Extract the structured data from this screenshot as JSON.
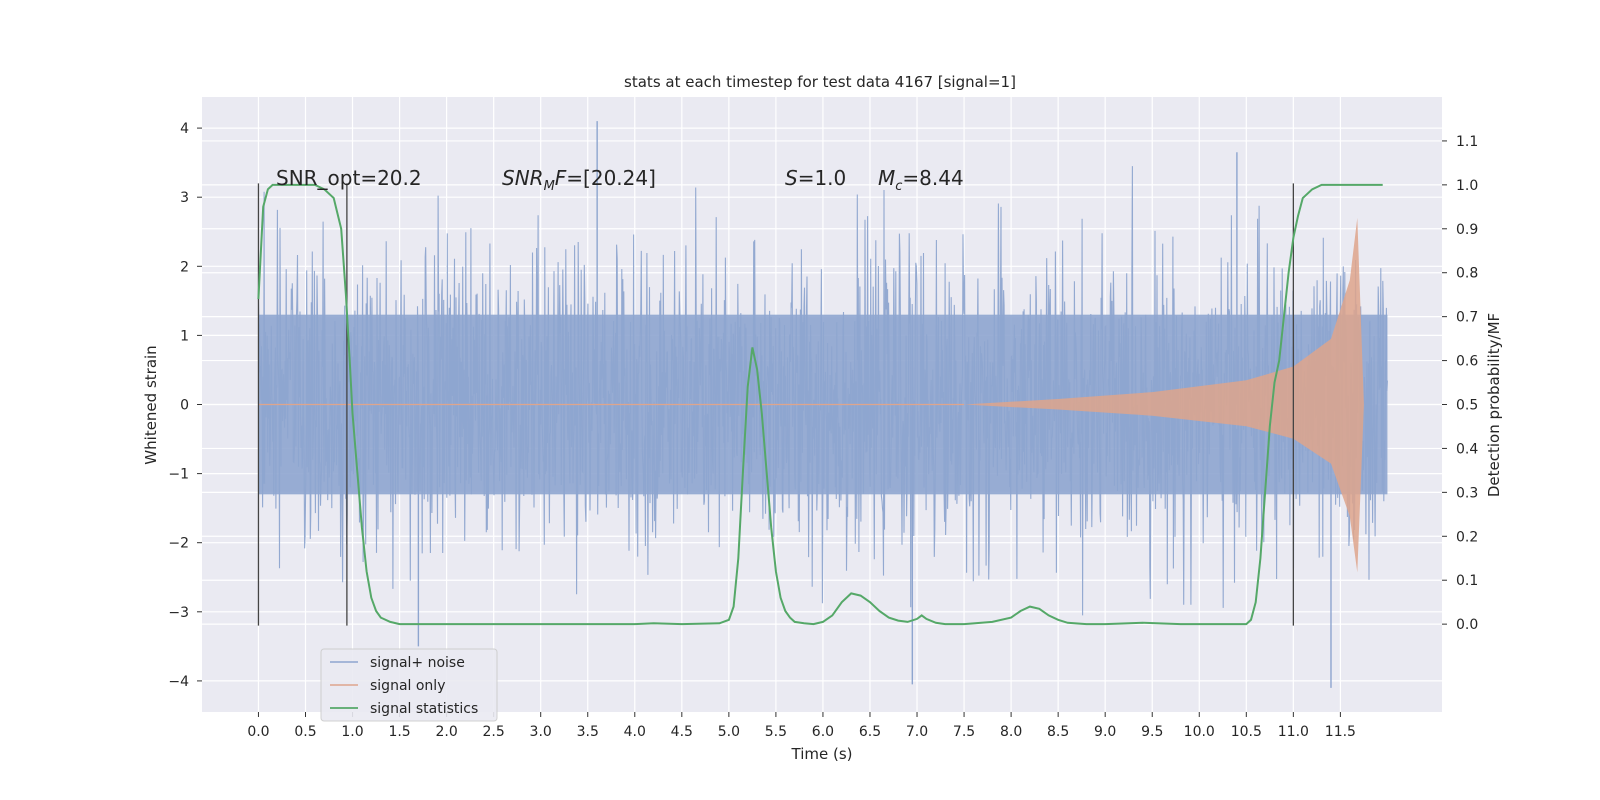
{
  "chart_data": {
    "type": "line",
    "title": "stats at each timestep for test data 4167 [signal=1]",
    "xlabel": "Time (s)",
    "ylabel": "Whitened strain",
    "y2label": "Detection probability/MF",
    "xlim": [
      -0.6,
      12.58
    ],
    "ylim": [
      -4.45,
      4.45
    ],
    "y2lim": [
      -0.2,
      1.2
    ],
    "x_ticks": [
      0.0,
      0.5,
      1.0,
      1.5,
      2.0,
      2.5,
      3.0,
      3.5,
      4.0,
      4.5,
      5.0,
      5.5,
      6.0,
      6.5,
      7.0,
      7.5,
      8.0,
      8.5,
      9.0,
      9.5,
      10.0,
      10.5,
      11.0,
      11.5
    ],
    "y_ticks": [
      -4,
      -3,
      -2,
      -1,
      0,
      1,
      2,
      3,
      4
    ],
    "y2_ticks": [
      0.0,
      0.1,
      0.2,
      0.3,
      0.4,
      0.5,
      0.6,
      0.7,
      0.8,
      0.9,
      1.0,
      1.1
    ],
    "grid": true,
    "legend_position": "bottom-left",
    "series": [
      {
        "name": "signal+ noise",
        "color": "#8ea5cf",
        "description": "whitened strain data, noise band roughly ±1.3 with spikes to about ±4",
        "x_range": [
          0.0,
          12.0
        ],
        "notable_peaks": [
          {
            "x": 3.6,
            "y": 4.1
          },
          {
            "x": 11.4,
            "y": -4.1
          },
          {
            "x": 6.95,
            "y": -4.05
          },
          {
            "x": 10.4,
            "y": 3.65
          },
          {
            "x": 1.7,
            "y": -3.5
          }
        ]
      },
      {
        "name": "signal only",
        "color": "#dea58c",
        "description": "chirp envelope growing from 0 near t=7.5 s to about ±2.7 near t=11.7 s",
        "envelope": [
          {
            "x": 7.5,
            "amp": 0.0
          },
          {
            "x": 8.5,
            "amp": 0.08
          },
          {
            "x": 9.5,
            "amp": 0.18
          },
          {
            "x": 10.5,
            "amp": 0.35
          },
          {
            "x": 11.0,
            "amp": 0.55
          },
          {
            "x": 11.4,
            "amp": 0.95
          },
          {
            "x": 11.6,
            "amp": 1.8
          },
          {
            "x": 11.68,
            "amp": 2.7
          },
          {
            "x": 11.75,
            "amp": 0.0
          }
        ]
      },
      {
        "name": "signal statistics",
        "color": "#55a868",
        "axis": "right",
        "x": [
          0.0,
          0.05,
          0.1,
          0.15,
          0.25,
          0.4,
          0.6,
          0.7,
          0.8,
          0.88,
          0.93,
          0.97,
          1.0,
          1.05,
          1.1,
          1.15,
          1.2,
          1.25,
          1.3,
          1.4,
          1.5,
          1.7,
          2.0,
          3.0,
          4.0,
          4.2,
          4.5,
          4.9,
          5.0,
          5.05,
          5.1,
          5.15,
          5.2,
          5.25,
          5.3,
          5.35,
          5.4,
          5.45,
          5.5,
          5.55,
          5.6,
          5.65,
          5.7,
          5.8,
          5.9,
          6.0,
          6.1,
          6.2,
          6.3,
          6.4,
          6.5,
          6.6,
          6.7,
          6.8,
          6.9,
          7.0,
          7.05,
          7.1,
          7.2,
          7.3,
          7.5,
          7.8,
          8.0,
          8.1,
          8.2,
          8.3,
          8.4,
          8.5,
          8.6,
          8.8,
          9.0,
          9.4,
          9.8,
          10.2,
          10.5,
          10.55,
          10.6,
          10.65,
          10.7,
          10.75,
          10.8,
          10.85,
          10.9,
          10.95,
          11.0,
          11.05,
          11.1,
          11.2,
          11.3,
          11.4,
          11.6,
          11.8,
          11.95
        ],
        "values": [
          0.74,
          0.95,
          0.99,
          1.0,
          1.0,
          1.0,
          1.0,
          0.99,
          0.97,
          0.9,
          0.75,
          0.6,
          0.48,
          0.35,
          0.22,
          0.12,
          0.06,
          0.03,
          0.015,
          0.005,
          0.0,
          0.0,
          0.0,
          0.0,
          0.0,
          0.002,
          0.0,
          0.002,
          0.01,
          0.04,
          0.15,
          0.35,
          0.54,
          0.63,
          0.58,
          0.48,
          0.35,
          0.22,
          0.12,
          0.06,
          0.03,
          0.015,
          0.005,
          0.002,
          0.0,
          0.005,
          0.02,
          0.05,
          0.07,
          0.065,
          0.05,
          0.03,
          0.015,
          0.008,
          0.005,
          0.012,
          0.02,
          0.012,
          0.003,
          0.0,
          0.0,
          0.005,
          0.015,
          0.03,
          0.04,
          0.035,
          0.02,
          0.01,
          0.003,
          0.0,
          0.0,
          0.003,
          0.0,
          0.0,
          0.0,
          0.01,
          0.05,
          0.15,
          0.3,
          0.45,
          0.55,
          0.6,
          0.7,
          0.8,
          0.88,
          0.93,
          0.97,
          0.99,
          1.0,
          1.0,
          1.0,
          1.0,
          1.0
        ]
      }
    ],
    "vertical_lines": [
      0.0,
      0.94,
      11.0
    ],
    "annotations": {
      "snr_opt": "SNR_opt=20.2",
      "snr_mf_prefix": "SNR",
      "snr_mf_sub": "M",
      "snr_mf_mid": "F",
      "snr_mf_value": "=[20.24]",
      "s_var": "S",
      "s_value": "=1.0",
      "mc_var": "M",
      "mc_sub": "c",
      "mc_value": "=8.44"
    }
  }
}
